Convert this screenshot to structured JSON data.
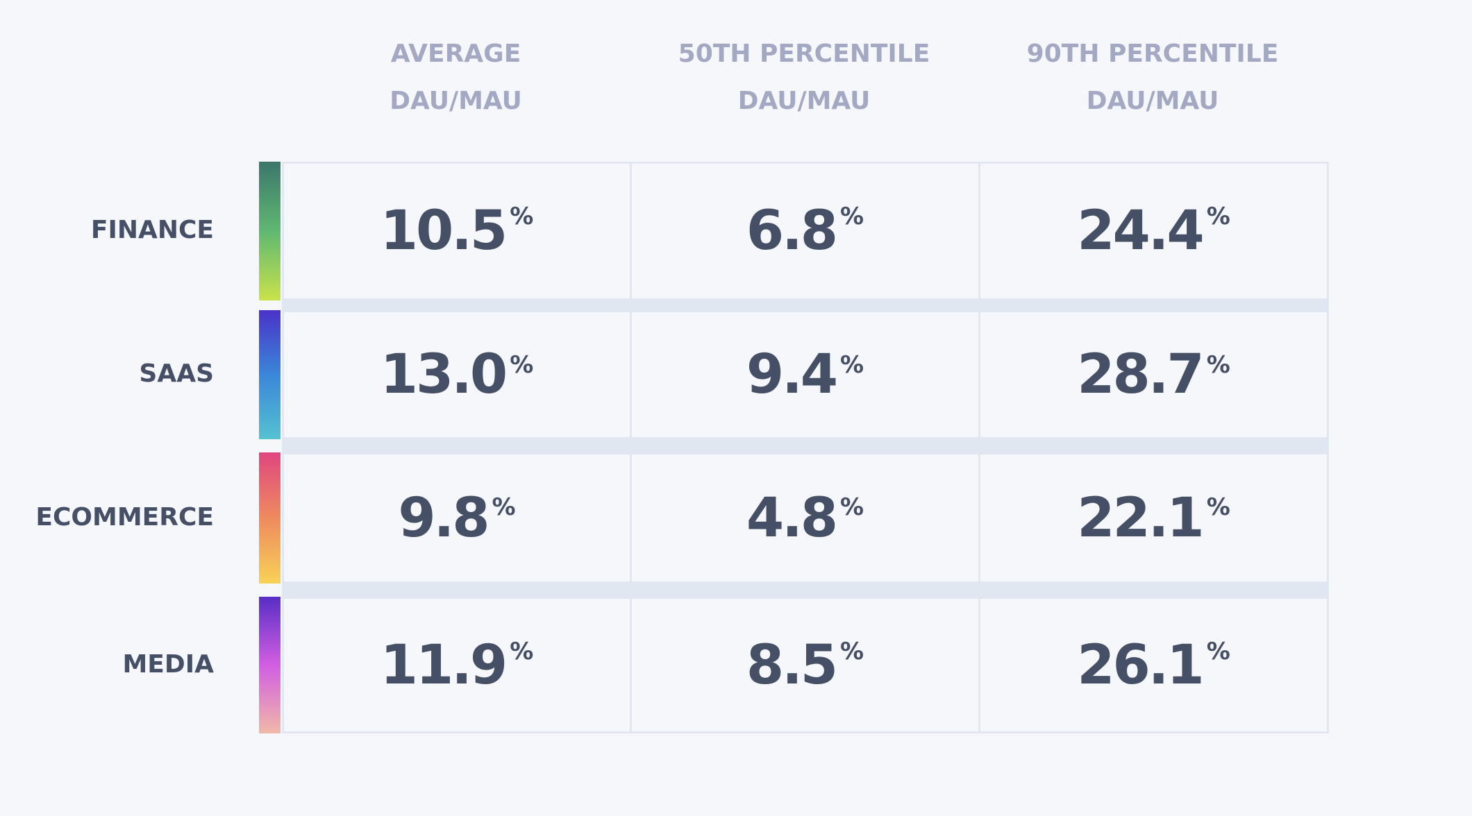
{
  "table": {
    "columns": [
      {
        "lines": [
          "AVERAGE",
          "DAU/MAU"
        ]
      },
      {
        "lines": [
          "50TH PERCENTILE",
          "DAU/MAU"
        ]
      },
      {
        "lines": [
          "90TH PERCENTILE",
          "DAU/MAU"
        ]
      }
    ],
    "rows": [
      {
        "label": "FINANCE",
        "colors": [
          "#3b766c",
          "#5fb872",
          "#c9e24a"
        ],
        "cells": [
          {
            "value": "10.5",
            "unit": "%"
          },
          {
            "value": "6.8",
            "unit": "%"
          },
          {
            "value": "24.4",
            "unit": "%"
          }
        ]
      },
      {
        "label": "SAAS",
        "colors": [
          "#4a32c9",
          "#3a86d8",
          "#55c2d2"
        ],
        "cells": [
          {
            "value": "13.0",
            "unit": "%"
          },
          {
            "value": "9.4",
            "unit": "%"
          },
          {
            "value": "28.7",
            "unit": "%"
          }
        ]
      },
      {
        "label": "ECOMMERCE",
        "colors": [
          "#e0467f",
          "#ee8a5f",
          "#f8d257"
        ],
        "cells": [
          {
            "value": "9.8",
            "unit": "%"
          },
          {
            "value": "4.8",
            "unit": "%"
          },
          {
            "value": "22.1",
            "unit": "%"
          }
        ]
      },
      {
        "label": "MEDIA",
        "colors": [
          "#582ec6",
          "#d25ee2",
          "#f0b9a8"
        ],
        "cells": [
          {
            "value": "11.9",
            "unit": "%"
          },
          {
            "value": "8.5",
            "unit": "%"
          },
          {
            "value": "26.1",
            "unit": "%"
          }
        ]
      }
    ]
  }
}
